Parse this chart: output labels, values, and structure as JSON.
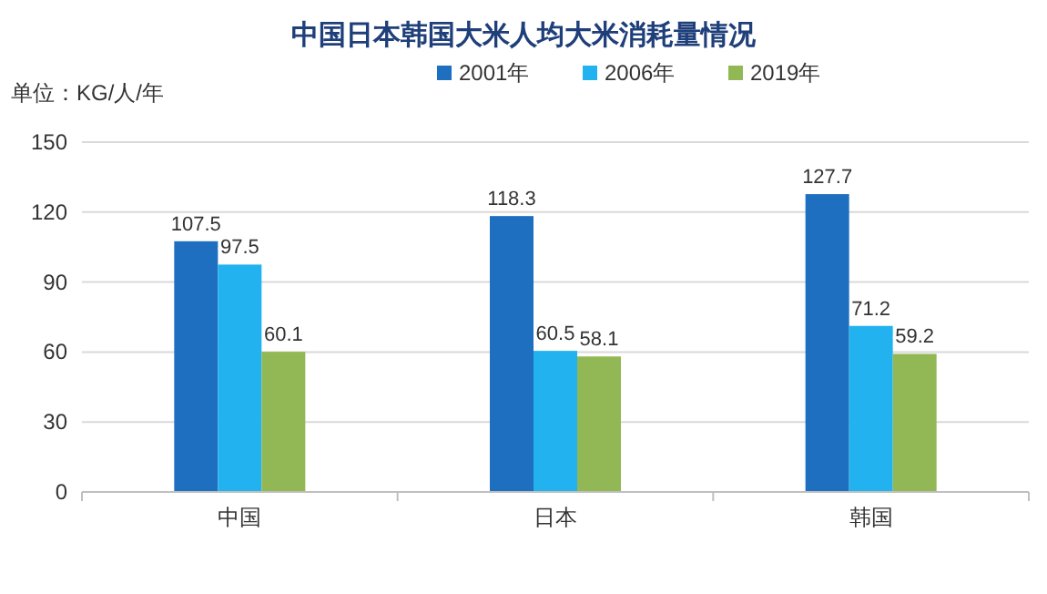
{
  "chart_data": {
    "type": "bar",
    "title": "中国日本韩国大米人均大米消耗量情况",
    "ylabel": "单位：KG/人/年",
    "categories": [
      "中国",
      "日本",
      "韩国"
    ],
    "series": [
      {
        "name": "2001年",
        "color": "#1f6fc0",
        "values": [
          107.5,
          118.3,
          127.7
        ]
      },
      {
        "name": "2006年",
        "color": "#22b2f0",
        "values": [
          97.5,
          60.5,
          71.2
        ]
      },
      {
        "name": "2019年",
        "color": "#92b855",
        "values": [
          60.1,
          58.1,
          59.2
        ]
      }
    ],
    "ylim": [
      0,
      150
    ],
    "yticks": [
      0,
      30,
      60,
      90,
      120,
      150
    ],
    "grid": "y",
    "legend": "top",
    "data_labels": true
  }
}
